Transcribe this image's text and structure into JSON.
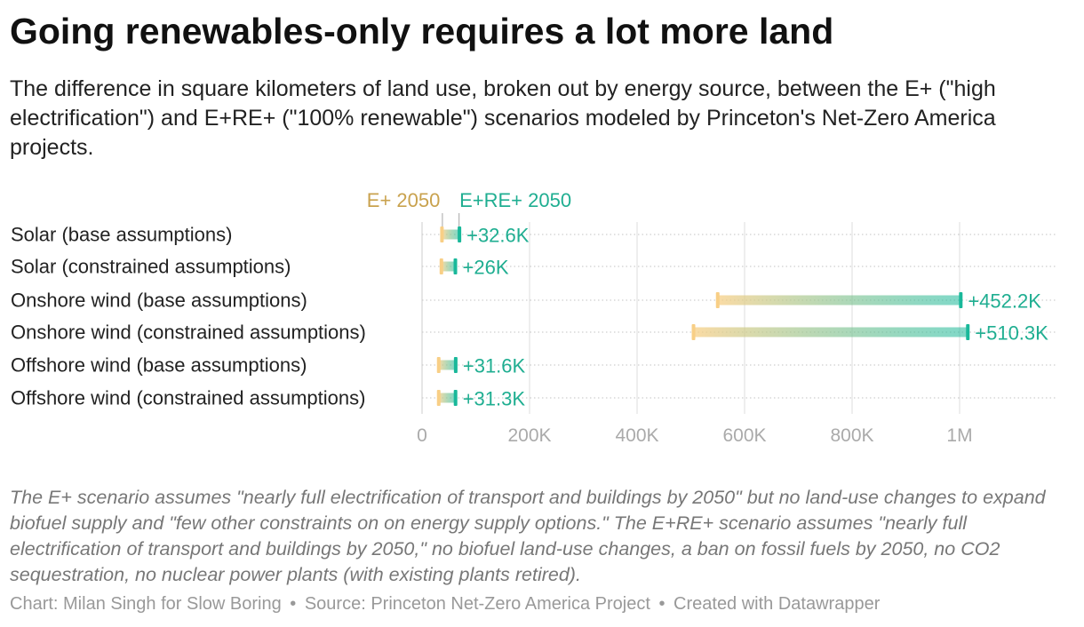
{
  "title": "Going renewables-only requires a lot more land",
  "subtitle": "The difference in square kilometers of land use, broken out by energy source, between the E+ (\"high electrification\") and E+RE+ (\"100% renewable\") scenarios modeled by Princeton's Net-Zero America projects.",
  "notes": "The E+ scenario assumes \"nearly full electrification of transport and buildings by 2050\" but no land-use changes to expand biofuel supply and \"few other constraints on on energy supply options.\" The E+RE+ scenario assumes \"nearly full electrification of transport and buildings by 2050,\" no biofuel land-use changes, a ban on fossil fuels by 2050, no CO2 sequestration, no nuclear power plants (with existing plants retired).",
  "footer": {
    "chart_credit": "Chart: Milan Singh for Slow Boring",
    "source": "Source: Princeton Net-Zero America Project",
    "created_with": "Created with Datawrapper",
    "separator": "•"
  },
  "colors": {
    "eplus": "#f8cf86",
    "ereplus": "#19b89a",
    "eplus_label": "#c9a24e",
    "ereplus_label": "#1fae91",
    "grid": "#dddddd",
    "tick_label": "#aaaaaa"
  },
  "chart_data": {
    "type": "range-dot",
    "series": [
      {
        "name": "E+ 2050"
      },
      {
        "name": "E+RE+ 2050"
      }
    ],
    "categories": [
      "Solar (base assumptions)",
      "Solar (constrained assumptions)",
      "Onshore wind (base assumptions)",
      "Onshore wind (constrained assumptions)",
      "Offshore wind (base assumptions)",
      "Offshore wind (constrained assumptions)"
    ],
    "eplus": [
      37000,
      36000,
      550000,
      505000,
      31000,
      31000
    ],
    "ereplus": [
      69600,
      62000,
      1002200,
      1015300,
      62600,
      62300
    ],
    "labels": [
      "+32.6K",
      "+26K",
      "+452.2K",
      "+510.3K",
      "+31.6K",
      "+31.3K"
    ],
    "xlim": [
      0,
      1180000
    ],
    "xticks": [
      0,
      200000,
      400000,
      600000,
      800000,
      1000000
    ],
    "xtick_labels": [
      "0",
      "200K",
      "400K",
      "600K",
      "800K",
      "1M"
    ],
    "grid": true,
    "legend": "top"
  }
}
